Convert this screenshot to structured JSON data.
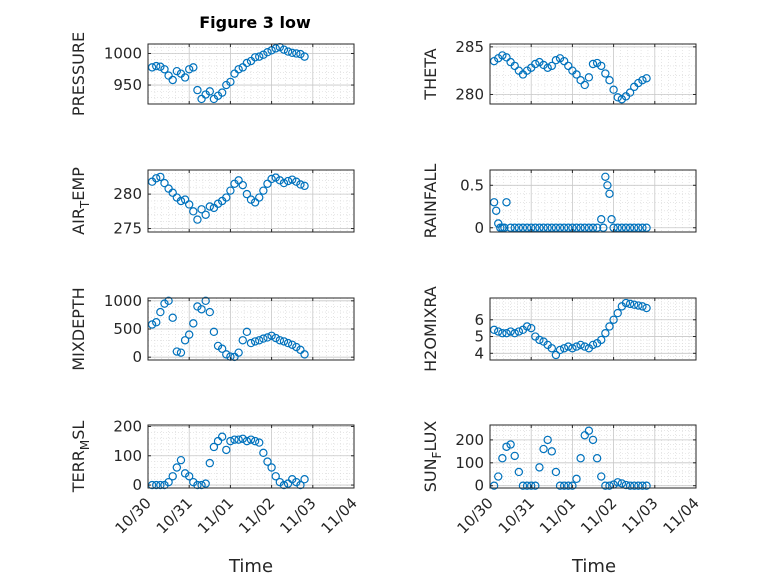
{
  "figure": {
    "title": "Figure 3 low",
    "xlabel_left": "Time",
    "xlabel_right": "Time",
    "x_tick_labels": [
      "10/30",
      "10/31",
      "11/01",
      "11/02",
      "11/03",
      "11/04"
    ],
    "marker_color": "#0072BD"
  },
  "chart_data": [
    {
      "type": "scatter",
      "id": "pressure",
      "ylabel": "PRESSURE",
      "xlim": [
        0,
        5
      ],
      "ylim": [
        920,
        1015
      ],
      "yticks": [
        950,
        1000
      ],
      "grid": true,
      "x": [
        0.1,
        0.2,
        0.3,
        0.4,
        0.5,
        0.6,
        0.7,
        0.8,
        0.9,
        1.0,
        1.1,
        1.2,
        1.3,
        1.4,
        1.5,
        1.6,
        1.7,
        1.8,
        1.9,
        2.0,
        2.1,
        2.2,
        2.3,
        2.4,
        2.5,
        2.6,
        2.7,
        2.8,
        2.9,
        3.0,
        3.1,
        3.2,
        3.3,
        3.4,
        3.5,
        3.6,
        3.7,
        3.8
      ],
      "y": [
        978,
        980,
        979,
        975,
        965,
        958,
        972,
        968,
        962,
        975,
        978,
        942,
        928,
        935,
        940,
        928,
        933,
        938,
        950,
        955,
        968,
        975,
        978,
        985,
        988,
        994,
        995,
        998,
        1002,
        1005,
        1008,
        1010,
        1006,
        1003,
        1001,
        1000,
        999,
        995
      ]
    },
    {
      "type": "scatter",
      "id": "theta",
      "ylabel": "THETA",
      "xlim": [
        0,
        5
      ],
      "ylim": [
        279,
        285.3
      ],
      "yticks": [
        280,
        285
      ],
      "grid": true,
      "x": [
        0.1,
        0.2,
        0.3,
        0.4,
        0.5,
        0.6,
        0.7,
        0.8,
        0.9,
        1.0,
        1.1,
        1.2,
        1.3,
        1.4,
        1.5,
        1.6,
        1.7,
        1.8,
        1.9,
        2.0,
        2.1,
        2.2,
        2.3,
        2.4,
        2.5,
        2.6,
        2.7,
        2.8,
        2.9,
        3.0,
        3.1,
        3.2,
        3.3,
        3.4,
        3.5,
        3.6,
        3.7,
        3.8
      ],
      "y": [
        283.5,
        283.8,
        284.1,
        283.9,
        283.4,
        283.0,
        282.5,
        282.1,
        282.5,
        282.8,
        283.2,
        283.4,
        283.1,
        282.8,
        283.0,
        283.6,
        283.8,
        283.5,
        283.0,
        282.5,
        282.1,
        281.5,
        281.0,
        281.8,
        283.2,
        283.3,
        283.0,
        282.2,
        281.5,
        280.5,
        279.7,
        279.5,
        279.8,
        280.2,
        280.8,
        281.2,
        281.5,
        281.7
      ]
    },
    {
      "type": "scatter",
      "id": "air_temp",
      "ylabel": "AIR_TEMP",
      "xlim": [
        0,
        5
      ],
      "ylim": [
        274.5,
        283.5
      ],
      "yticks": [
        275,
        280
      ],
      "grid": true,
      "x": [
        0.1,
        0.2,
        0.3,
        0.4,
        0.5,
        0.6,
        0.7,
        0.8,
        0.9,
        1.0,
        1.1,
        1.2,
        1.3,
        1.4,
        1.5,
        1.6,
        1.7,
        1.8,
        1.9,
        2.0,
        2.1,
        2.2,
        2.3,
        2.4,
        2.5,
        2.6,
        2.7,
        2.8,
        2.9,
        3.0,
        3.1,
        3.2,
        3.3,
        3.4,
        3.5,
        3.6,
        3.7,
        3.8
      ],
      "y": [
        281.8,
        282.3,
        282.5,
        281.6,
        280.8,
        280.2,
        279.5,
        279.0,
        279.2,
        278.5,
        277.5,
        276.3,
        277.8,
        277.0,
        278.2,
        278.0,
        278.6,
        279.0,
        279.5,
        280.5,
        281.5,
        282.0,
        281.3,
        280.0,
        279.2,
        278.8,
        279.5,
        280.5,
        281.5,
        282.2,
        282.4,
        282.0,
        281.6,
        281.9,
        282.1,
        281.8,
        281.4,
        281.2
      ]
    },
    {
      "type": "scatter",
      "id": "rainfall",
      "ylabel": "RAINFALL",
      "xlim": [
        0,
        5
      ],
      "ylim": [
        -0.05,
        0.68
      ],
      "yticks": [
        0,
        0.5
      ],
      "grid": true,
      "x": [
        0.1,
        0.15,
        0.2,
        0.25,
        0.3,
        0.35,
        0.4,
        0.5,
        0.6,
        0.7,
        0.8,
        0.9,
        1.0,
        1.1,
        1.2,
        1.3,
        1.4,
        1.5,
        1.6,
        1.7,
        1.8,
        1.9,
        2.0,
        2.1,
        2.2,
        2.3,
        2.4,
        2.5,
        2.6,
        2.7,
        2.75,
        2.8,
        2.85,
        2.9,
        2.95,
        3.0,
        3.1,
        3.2,
        3.3,
        3.4,
        3.5,
        3.6,
        3.7,
        3.8
      ],
      "y": [
        0.3,
        0.2,
        0.05,
        0.0,
        0.0,
        0.0,
        0.3,
        0.0,
        0.0,
        0.0,
        0.0,
        0.0,
        0.0,
        0.0,
        0.0,
        0.0,
        0.0,
        0.0,
        0.0,
        0.0,
        0.0,
        0.0,
        0.0,
        0.0,
        0.0,
        0.0,
        0.0,
        0.0,
        0.0,
        0.1,
        0.0,
        0.6,
        0.5,
        0.4,
        0.1,
        0.0,
        0.0,
        0.0,
        0.0,
        0.0,
        0.0,
        0.0,
        0.0,
        0.0
      ]
    },
    {
      "type": "scatter",
      "id": "mixdepth",
      "ylabel": "MIXDEPTH",
      "xlim": [
        0,
        5
      ],
      "ylim": [
        -50,
        1050
      ],
      "yticks": [
        0,
        500,
        1000
      ],
      "grid": true,
      "x": [
        0.1,
        0.2,
        0.3,
        0.4,
        0.5,
        0.6,
        0.7,
        0.8,
        0.9,
        1.0,
        1.1,
        1.2,
        1.3,
        1.4,
        1.5,
        1.6,
        1.7,
        1.8,
        1.9,
        2.0,
        2.1,
        2.2,
        2.3,
        2.4,
        2.5,
        2.6,
        2.7,
        2.8,
        2.9,
        3.0,
        3.1,
        3.2,
        3.3,
        3.4,
        3.5,
        3.6,
        3.7,
        3.8
      ],
      "y": [
        580,
        620,
        800,
        950,
        1000,
        700,
        100,
        80,
        300,
        400,
        600,
        900,
        850,
        1000,
        800,
        450,
        200,
        150,
        50,
        10,
        5,
        80,
        300,
        450,
        250,
        280,
        300,
        330,
        350,
        380,
        340,
        300,
        280,
        250,
        220,
        180,
        130,
        50
      ]
    },
    {
      "type": "scatter",
      "id": "h2omixra",
      "ylabel": "H2OMIXRA",
      "xlim": [
        0,
        5
      ],
      "ylim": [
        3.6,
        7.3
      ],
      "yticks": [
        4,
        5,
        6
      ],
      "grid": true,
      "x": [
        0.1,
        0.2,
        0.3,
        0.4,
        0.5,
        0.6,
        0.7,
        0.8,
        0.9,
        1.0,
        1.1,
        1.2,
        1.3,
        1.4,
        1.5,
        1.6,
        1.7,
        1.8,
        1.9,
        2.0,
        2.1,
        2.2,
        2.3,
        2.4,
        2.5,
        2.6,
        2.7,
        2.8,
        2.9,
        3.0,
        3.1,
        3.2,
        3.3,
        3.4,
        3.5,
        3.6,
        3.7,
        3.8
      ],
      "y": [
        5.4,
        5.3,
        5.2,
        5.2,
        5.3,
        5.2,
        5.3,
        5.4,
        5.6,
        5.5,
        5.0,
        4.8,
        4.7,
        4.5,
        4.3,
        3.9,
        4.2,
        4.3,
        4.4,
        4.3,
        4.4,
        4.5,
        4.4,
        4.3,
        4.5,
        4.6,
        4.8,
        5.2,
        5.6,
        6.0,
        6.4,
        6.8,
        7.0,
        6.95,
        6.9,
        6.85,
        6.8,
        6.7
      ]
    },
    {
      "type": "scatter",
      "id": "terr_msl",
      "ylabel": "TERR_MSL",
      "xlim": [
        0,
        5
      ],
      "ylim": [
        -10,
        205
      ],
      "yticks": [
        0,
        100,
        200
      ],
      "grid": true,
      "x": [
        0.1,
        0.2,
        0.3,
        0.4,
        0.5,
        0.6,
        0.7,
        0.8,
        0.9,
        1.0,
        1.1,
        1.2,
        1.3,
        1.4,
        1.5,
        1.6,
        1.7,
        1.8,
        1.9,
        2.0,
        2.1,
        2.2,
        2.3,
        2.4,
        2.5,
        2.6,
        2.7,
        2.8,
        2.9,
        3.0,
        3.1,
        3.2,
        3.3,
        3.4,
        3.5,
        3.6,
        3.7,
        3.8
      ],
      "y": [
        0,
        0,
        0,
        0,
        10,
        30,
        60,
        85,
        40,
        30,
        10,
        0,
        0,
        5,
        75,
        130,
        150,
        165,
        120,
        150,
        155,
        155,
        158,
        150,
        155,
        150,
        145,
        110,
        80,
        60,
        30,
        10,
        0,
        5,
        20,
        10,
        0,
        20
      ]
    },
    {
      "type": "scatter",
      "id": "sun_flux",
      "ylabel": "SUN_FLUX",
      "xlim": [
        0,
        5
      ],
      "ylim": [
        -10,
        265
      ],
      "yticks": [
        0,
        100,
        200
      ],
      "grid": true,
      "x": [
        0.1,
        0.2,
        0.3,
        0.4,
        0.5,
        0.6,
        0.7,
        0.8,
        0.9,
        1.0,
        1.1,
        1.2,
        1.3,
        1.4,
        1.5,
        1.6,
        1.7,
        1.8,
        1.9,
        2.0,
        2.1,
        2.2,
        2.3,
        2.4,
        2.5,
        2.6,
        2.7,
        2.8,
        2.9,
        3.0,
        3.1,
        3.2,
        3.3,
        3.4,
        3.5,
        3.6,
        3.7,
        3.8
      ],
      "y": [
        0,
        40,
        120,
        170,
        180,
        130,
        60,
        0,
        0,
        0,
        0,
        80,
        160,
        200,
        150,
        60,
        0,
        0,
        0,
        0,
        30,
        120,
        220,
        240,
        200,
        120,
        40,
        0,
        0,
        5,
        15,
        10,
        3,
        0,
        0,
        0,
        0,
        0
      ]
    }
  ]
}
